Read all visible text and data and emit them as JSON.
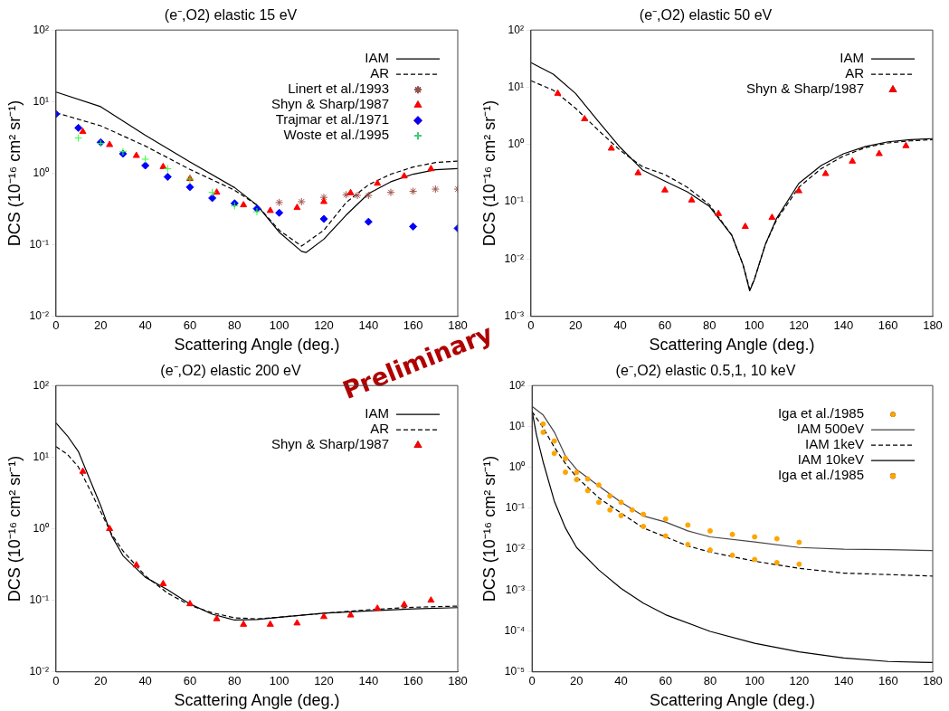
{
  "chart_data": [
    {
      "type": "line",
      "title": "(e⁻,O2) elastic 15 eV",
      "xlabel": "Scattering Angle (deg.)",
      "ylabel": "DCS (10⁻¹⁶ cm² sr⁻¹)",
      "log": "y",
      "grid": false,
      "legend": "top right",
      "xlim": [
        0,
        180
      ],
      "xticks": [
        0,
        20,
        40,
        60,
        80,
        100,
        120,
        140,
        160,
        180
      ],
      "ylim": [
        0.01,
        100
      ],
      "yticks": [
        {
          "value": 0.01,
          "label": "10⁻²"
        },
        {
          "value": 0.1,
          "label": "10⁻¹"
        },
        {
          "value": 1,
          "label": "10⁰"
        },
        {
          "value": 10,
          "label": "10¹"
        },
        {
          "value": 100,
          "label": "10²"
        }
      ],
      "annotations": [
        "Preliminary"
      ],
      "series": [
        {
          "name": "IAM",
          "type": "line",
          "line_style": "solid",
          "marker": "none",
          "color": "#000000",
          "x": [
            0,
            20,
            40,
            60,
            80,
            90,
            100,
            110,
            112,
            120,
            130,
            140,
            150,
            160,
            170,
            180
          ],
          "values": [
            13.6,
            8.5,
            3.4,
            1.44,
            0.63,
            0.36,
            0.15,
            0.081,
            0.078,
            0.12,
            0.26,
            0.52,
            0.76,
            0.97,
            1.12,
            1.16
          ]
        },
        {
          "name": "AR",
          "type": "line",
          "line_style": "dashed",
          "marker": "none",
          "color": "#000000",
          "x": [
            0,
            20,
            40,
            60,
            80,
            90,
            100,
            110,
            120,
            130,
            140,
            150,
            160,
            170,
            180
          ],
          "values": [
            7.0,
            4.6,
            2.4,
            1.13,
            0.58,
            0.36,
            0.16,
            0.096,
            0.16,
            0.39,
            0.69,
            0.97,
            1.22,
            1.41,
            1.48
          ]
        },
        {
          "name": "Linert et al./1993",
          "type": "scatter",
          "color": "#a0524a",
          "x": [
            100,
            110,
            120,
            130,
            135,
            140,
            150,
            160,
            170,
            180
          ],
          "values": [
            0.39,
            0.4,
            0.46,
            0.5,
            0.49,
            0.49,
            0.54,
            0.56,
            0.6,
            0.6
          ]
        },
        {
          "name": "Shyn & Sharp/1987",
          "type": "scatter",
          "marker": "triangle",
          "color": "#ff0000",
          "x": [
            12,
            24,
            36,
            48,
            60,
            72,
            84,
            96,
            108,
            120,
            132,
            144,
            156,
            168
          ],
          "values": [
            3.8,
            2.5,
            1.76,
            1.23,
            0.84,
            0.54,
            0.36,
            0.3,
            0.33,
            0.4,
            0.53,
            0.72,
            0.91,
            1.15
          ]
        },
        {
          "name": "Trajmar et al./1971",
          "type": "scatter",
          "marker": "diamond",
          "color": "#0000ff",
          "x": [
            0,
            10,
            20,
            30,
            40,
            50,
            60,
            70,
            80,
            90,
            100,
            120,
            140,
            160,
            180
          ],
          "values": [
            6.7,
            4.3,
            2.7,
            1.87,
            1.28,
            0.89,
            0.64,
            0.45,
            0.38,
            0.32,
            0.28,
            0.23,
            0.21,
            0.18,
            0.17
          ]
        },
        {
          "name": "Woste et al./1995",
          "type": "scatter",
          "marker": "cross",
          "color": "#33ff33",
          "x": [
            10,
            20,
            30,
            40,
            50,
            60,
            70,
            80,
            90
          ],
          "values": [
            3.1,
            2.6,
            2.0,
            1.57,
            1.16,
            0.83,
            0.54,
            0.35,
            0.29
          ]
        }
      ]
    },
    {
      "type": "line",
      "title": "(e⁻,O2) elastic 50 eV",
      "xlabel": "Scattering Angle (deg.)",
      "ylabel": "DCS (10⁻¹⁶ cm² sr⁻¹)",
      "log": "y",
      "grid": false,
      "legend": "top right",
      "xlim": [
        0,
        180
      ],
      "xticks": [
        0,
        20,
        40,
        60,
        80,
        100,
        120,
        140,
        160,
        180
      ],
      "ylim": [
        0.001,
        100
      ],
      "yticks": [
        {
          "value": 0.001,
          "label": "10⁻³"
        },
        {
          "value": 0.01,
          "label": "10⁻²"
        },
        {
          "value": 0.1,
          "label": "10⁻¹"
        },
        {
          "value": 1,
          "label": "10⁰"
        },
        {
          "value": 10,
          "label": "10¹"
        },
        {
          "value": 100,
          "label": "10²"
        }
      ],
      "series": [
        {
          "name": "IAM",
          "type": "line",
          "line_style": "solid",
          "marker": "none",
          "color": "#000000",
          "x": [
            0,
            10,
            20,
            30,
            40,
            50,
            60,
            70,
            80,
            90,
            95,
            98,
            100,
            105,
            110,
            120,
            130,
            140,
            150,
            160,
            170,
            180
          ],
          "values": [
            27,
            17,
            7.8,
            2.6,
            0.89,
            0.36,
            0.23,
            0.15,
            0.083,
            0.026,
            0.008,
            0.0028,
            0.0043,
            0.018,
            0.051,
            0.21,
            0.43,
            0.69,
            0.93,
            1.12,
            1.22,
            1.27
          ]
        },
        {
          "name": "AR",
          "type": "line",
          "line_style": "dashed",
          "marker": "none",
          "color": "#000000",
          "x": [
            0,
            10,
            20,
            30,
            40,
            50,
            60,
            70,
            80,
            90,
            95,
            98,
            100,
            105,
            110,
            120,
            130,
            140,
            150,
            160,
            170,
            180
          ],
          "values": [
            13,
            8.9,
            4.3,
            1.8,
            0.79,
            0.41,
            0.3,
            0.18,
            0.089,
            0.026,
            0.008,
            0.003,
            0.0043,
            0.018,
            0.048,
            0.18,
            0.38,
            0.63,
            0.89,
            1.07,
            1.16,
            1.22
          ]
        },
        {
          "name": "Shyn & Sharp/1987",
          "type": "scatter",
          "marker": "triangle",
          "color": "#ff0000",
          "x": [
            12,
            24,
            36,
            48,
            60,
            72,
            84,
            96,
            108,
            120,
            132,
            144,
            156,
            168
          ],
          "values": [
            7.8,
            2.8,
            0.86,
            0.32,
            0.16,
            0.107,
            0.062,
            0.037,
            0.053,
            0.155,
            0.31,
            0.51,
            0.69,
            0.95
          ]
        }
      ]
    },
    {
      "type": "line",
      "title": "(e⁻,O2) elastic 200 eV",
      "xlabel": "Scattering Angle (deg.)",
      "ylabel": "DCS (10⁻¹⁶ cm² sr⁻¹)",
      "log": "y",
      "grid": false,
      "legend": "top right",
      "xlim": [
        0,
        180
      ],
      "xticks": [
        0,
        20,
        40,
        60,
        80,
        100,
        120,
        140,
        160,
        180
      ],
      "ylim": [
        0.01,
        100
      ],
      "yticks": [
        {
          "value": 0.01,
          "label": "10⁻²"
        },
        {
          "value": 0.1,
          "label": "10⁻¹"
        },
        {
          "value": 1,
          "label": "10⁰"
        },
        {
          "value": 10,
          "label": "10¹"
        },
        {
          "value": 100,
          "label": "10²"
        }
      ],
      "series": [
        {
          "name": "IAM",
          "type": "line",
          "line_style": "solid",
          "marker": "none",
          "color": "#000000",
          "x": [
            0,
            5,
            10,
            15,
            20,
            25,
            30,
            40,
            50,
            60,
            70,
            80,
            90,
            100,
            120,
            140,
            160,
            180
          ],
          "values": [
            30,
            20,
            12,
            5.0,
            2.1,
            0.79,
            0.42,
            0.21,
            0.14,
            0.089,
            0.064,
            0.053,
            0.054,
            0.058,
            0.066,
            0.071,
            0.076,
            0.079
          ]
        },
        {
          "name": "AR",
          "type": "line",
          "line_style": "dashed",
          "marker": "none",
          "color": "#000000",
          "x": [
            0,
            5,
            10,
            15,
            20,
            25,
            30,
            40,
            50,
            60,
            70,
            80,
            90,
            100,
            120,
            140,
            160,
            180
          ],
          "values": [
            14,
            11,
            7.3,
            3.6,
            1.73,
            0.83,
            0.49,
            0.22,
            0.126,
            0.085,
            0.067,
            0.057,
            0.055,
            0.058,
            0.066,
            0.074,
            0.08,
            0.083
          ]
        },
        {
          "name": "Shyn & Sharp/1987",
          "type": "scatter",
          "marker": "triangle",
          "color": "#ff0000",
          "x": [
            12,
            24,
            36,
            48,
            60,
            72,
            84,
            96,
            108,
            120,
            132,
            144,
            156,
            168
          ],
          "values": [
            6.3,
            1.0,
            0.31,
            0.17,
            0.089,
            0.055,
            0.046,
            0.046,
            0.048,
            0.059,
            0.062,
            0.077,
            0.087,
            0.1
          ]
        }
      ]
    },
    {
      "type": "line",
      "title": "(e⁻,O2) elastic 0.5,1, 10 keV",
      "xlabel": "Scattering Angle (deg.)",
      "ylabel": "DCS (10⁻¹⁶ cm² sr⁻¹)",
      "log": "y",
      "grid": false,
      "legend": "top right",
      "xlim": [
        0,
        180
      ],
      "xticks": [
        0,
        20,
        40,
        60,
        80,
        100,
        120,
        140,
        160,
        180
      ],
      "ylim": [
        1e-05,
        100
      ],
      "yticks": [
        {
          "value": 1e-05,
          "label": "10⁻⁵"
        },
        {
          "value": 0.0001,
          "label": "10⁻⁴"
        },
        {
          "value": 0.001,
          "label": "10⁻³"
        },
        {
          "value": 0.01,
          "label": "10⁻²"
        },
        {
          "value": 0.1,
          "label": "10⁻¹"
        },
        {
          "value": 1,
          "label": "10⁰"
        },
        {
          "value": 10,
          "label": "10¹"
        },
        {
          "value": 100,
          "label": "10²"
        }
      ],
      "series": [
        {
          "name": "Iga et al./1985",
          "type": "scatter",
          "marker": "circle",
          "color": "#ffa500",
          "x": [
            5,
            10,
            15,
            20,
            25,
            30,
            35,
            40,
            45,
            50,
            60,
            70,
            80,
            90,
            100,
            110,
            120
          ],
          "values": [
            11.5,
            4.4,
            1.65,
            0.75,
            0.52,
            0.37,
            0.2,
            0.14,
            0.091,
            0.071,
            0.055,
            0.039,
            0.028,
            0.023,
            0.02,
            0.018,
            0.0147
          ]
        },
        {
          "name": "IAM 500eV",
          "type": "line",
          "line_style": "solid",
          "marker": "none",
          "color": "#444444",
          "x": [
            0,
            5,
            10,
            15,
            20,
            30,
            40,
            50,
            60,
            70,
            80,
            100,
            120,
            140,
            160,
            180
          ],
          "values": [
            31,
            19,
            7.3,
            1.9,
            0.89,
            0.35,
            0.14,
            0.065,
            0.046,
            0.028,
            0.02,
            0.015,
            0.011,
            0.01,
            0.0097,
            0.0093
          ]
        },
        {
          "name": "IAM 1keV",
          "type": "line",
          "line_style": "dashed",
          "marker": "none",
          "color": "#000000",
          "x": [
            0,
            5,
            10,
            15,
            20,
            30,
            40,
            50,
            60,
            70,
            80,
            100,
            120,
            140,
            160,
            180
          ],
          "values": [
            23,
            9.3,
            3.1,
            1.24,
            0.58,
            0.18,
            0.076,
            0.033,
            0.02,
            0.012,
            0.0085,
            0.0051,
            0.0034,
            0.0026,
            0.0024,
            0.0022
          ]
        },
        {
          "name": "IAM 10keV",
          "type": "line",
          "line_style": "solid",
          "marker": "none",
          "color": "#000000",
          "x": [
            0,
            2,
            5,
            10,
            15,
            20,
            30,
            40,
            50,
            60,
            80,
            100,
            120,
            140,
            160,
            180
          ],
          "values": [
            24,
            6.2,
            1.35,
            0.15,
            0.033,
            0.011,
            0.0031,
            0.0011,
            0.00048,
            0.00025,
            9.8e-05,
            5e-05,
            3.1e-05,
            2.2e-05,
            1.8e-05,
            1.7e-05
          ]
        },
        {
          "name": "Iga et al./1985",
          "type": "scatter",
          "marker": "circle",
          "color": "#ffa500",
          "x": [
            5,
            10,
            15,
            20,
            25,
            30,
            35,
            40,
            50,
            60,
            70,
            80,
            90,
            100,
            110,
            120
          ],
          "values": [
            7.2,
            2.2,
            0.76,
            0.5,
            0.27,
            0.14,
            0.091,
            0.066,
            0.036,
            0.021,
            0.013,
            0.0095,
            0.0071,
            0.0056,
            0.0047,
            0.0043
          ]
        }
      ]
    }
  ]
}
